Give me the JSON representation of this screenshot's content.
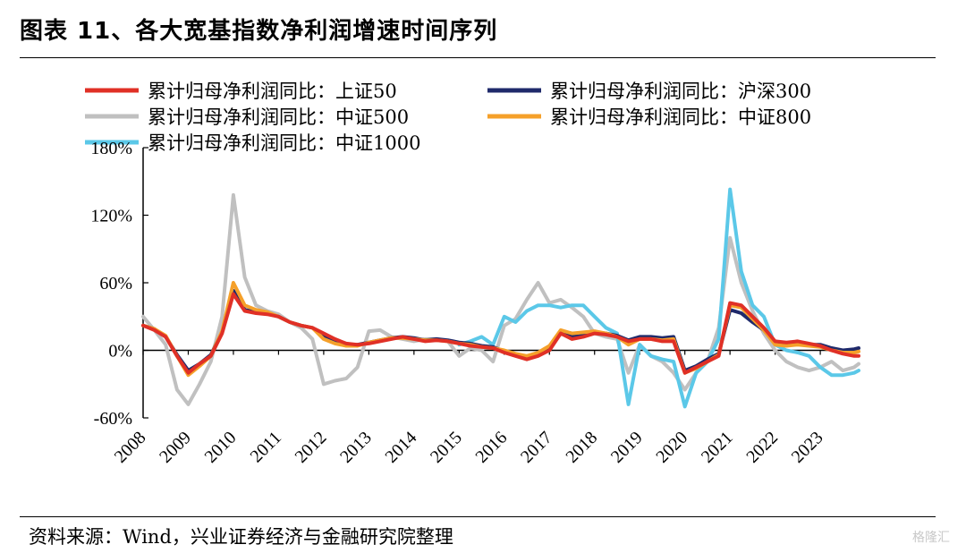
{
  "title": "图表 11、各大宽基指数净利润增速时间序列",
  "source": "资料来源：Wind，兴业证券经济与金融研究院整理",
  "watermark": "格隆汇",
  "chart_data": {
    "type": "line",
    "y_tick_labels": [
      "180%",
      "120%",
      "60%",
      "0%",
      "-60%"
    ],
    "y_ticks": [
      180,
      120,
      60,
      0,
      -60
    ],
    "ylim": [
      -60,
      180
    ],
    "x_tick_labels": [
      "2008",
      "2009",
      "2010",
      "2011",
      "2012",
      "2013",
      "2014",
      "2015",
      "2016",
      "2017",
      "2018",
      "2019",
      "2020",
      "2021",
      "2022",
      "2023"
    ],
    "xlim": [
      2008.0,
      2023.85
    ],
    "legend": "top",
    "grid": false,
    "series": [
      {
        "name": "累计归母净利润同比：上证50",
        "color": "#e03026",
        "points": [
          [
            2008.0,
            22
          ],
          [
            2008.25,
            18
          ],
          [
            2008.5,
            12
          ],
          [
            2008.75,
            -5
          ],
          [
            2009.0,
            -20
          ],
          [
            2009.25,
            -12
          ],
          [
            2009.5,
            -5
          ],
          [
            2009.75,
            15
          ],
          [
            2010.0,
            50
          ],
          [
            2010.25,
            35
          ],
          [
            2010.5,
            33
          ],
          [
            2010.75,
            32
          ],
          [
            2011.0,
            30
          ],
          [
            2011.25,
            25
          ],
          [
            2011.5,
            22
          ],
          [
            2011.75,
            20
          ],
          [
            2012.0,
            15
          ],
          [
            2012.25,
            10
          ],
          [
            2012.5,
            6
          ],
          [
            2012.75,
            5
          ],
          [
            2013.0,
            6
          ],
          [
            2013.25,
            8
          ],
          [
            2013.5,
            10
          ],
          [
            2013.75,
            12
          ],
          [
            2014.0,
            10
          ],
          [
            2014.25,
            8
          ],
          [
            2014.5,
            9
          ],
          [
            2014.75,
            8
          ],
          [
            2015.0,
            6
          ],
          [
            2015.25,
            4
          ],
          [
            2015.5,
            3
          ],
          [
            2015.75,
            2
          ],
          [
            2016.0,
            -2
          ],
          [
            2016.25,
            -5
          ],
          [
            2016.5,
            -8
          ],
          [
            2016.75,
            -5
          ],
          [
            2017.0,
            0
          ],
          [
            2017.25,
            15
          ],
          [
            2017.5,
            10
          ],
          [
            2017.75,
            12
          ],
          [
            2018.0,
            15
          ],
          [
            2018.25,
            14
          ],
          [
            2018.5,
            12
          ],
          [
            2018.75,
            8
          ],
          [
            2019.0,
            10
          ],
          [
            2019.25,
            10
          ],
          [
            2019.5,
            8
          ],
          [
            2019.75,
            8
          ],
          [
            2020.0,
            -20
          ],
          [
            2020.25,
            -15
          ],
          [
            2020.5,
            -10
          ],
          [
            2020.75,
            -5
          ],
          [
            2021.0,
            42
          ],
          [
            2021.25,
            40
          ],
          [
            2021.5,
            30
          ],
          [
            2021.75,
            20
          ],
          [
            2022.0,
            8
          ],
          [
            2022.25,
            7
          ],
          [
            2022.5,
            8
          ],
          [
            2022.75,
            6
          ],
          [
            2023.0,
            4
          ],
          [
            2023.25,
            0
          ],
          [
            2023.5,
            -3
          ],
          [
            2023.75,
            -5
          ],
          [
            2023.85,
            -5
          ]
        ]
      },
      {
        "name": "累计归母净利润同比：沪深300",
        "color": "#1f2a6b",
        "points": [
          [
            2008.0,
            22
          ],
          [
            2008.25,
            19
          ],
          [
            2008.5,
            12
          ],
          [
            2008.75,
            -4
          ],
          [
            2009.0,
            -18
          ],
          [
            2009.25,
            -12
          ],
          [
            2009.5,
            -4
          ],
          [
            2009.75,
            16
          ],
          [
            2010.0,
            53
          ],
          [
            2010.25,
            36
          ],
          [
            2010.5,
            34
          ],
          [
            2010.75,
            33
          ],
          [
            2011.0,
            30
          ],
          [
            2011.25,
            25
          ],
          [
            2011.5,
            22
          ],
          [
            2011.75,
            20
          ],
          [
            2012.0,
            12
          ],
          [
            2012.25,
            8
          ],
          [
            2012.5,
            5
          ],
          [
            2012.75,
            5
          ],
          [
            2013.0,
            7
          ],
          [
            2013.25,
            9
          ],
          [
            2013.5,
            11
          ],
          [
            2013.75,
            12
          ],
          [
            2014.0,
            11
          ],
          [
            2014.25,
            9
          ],
          [
            2014.5,
            10
          ],
          [
            2014.75,
            9
          ],
          [
            2015.0,
            7
          ],
          [
            2015.25,
            6
          ],
          [
            2015.5,
            4
          ],
          [
            2015.75,
            3
          ],
          [
            2016.0,
            -1
          ],
          [
            2016.25,
            -4
          ],
          [
            2016.5,
            -6
          ],
          [
            2016.75,
            -4
          ],
          [
            2017.0,
            2
          ],
          [
            2017.25,
            16
          ],
          [
            2017.5,
            12
          ],
          [
            2017.75,
            13
          ],
          [
            2018.0,
            16
          ],
          [
            2018.25,
            15
          ],
          [
            2018.5,
            13
          ],
          [
            2018.75,
            9
          ],
          [
            2019.0,
            12
          ],
          [
            2019.25,
            12
          ],
          [
            2019.5,
            11
          ],
          [
            2019.75,
            12
          ],
          [
            2020.0,
            -18
          ],
          [
            2020.25,
            -14
          ],
          [
            2020.5,
            -8
          ],
          [
            2020.75,
            -3
          ],
          [
            2021.0,
            36
          ],
          [
            2021.25,
            33
          ],
          [
            2021.5,
            25
          ],
          [
            2021.75,
            18
          ],
          [
            2022.0,
            6
          ],
          [
            2022.25,
            5
          ],
          [
            2022.5,
            6
          ],
          [
            2022.75,
            5
          ],
          [
            2023.0,
            5
          ],
          [
            2023.25,
            2
          ],
          [
            2023.5,
            0
          ],
          [
            2023.75,
            1
          ],
          [
            2023.85,
            2
          ]
        ]
      },
      {
        "name": "累计归母净利润同比：中证500",
        "color": "#c0c0c0",
        "points": [
          [
            2008.0,
            30
          ],
          [
            2008.25,
            18
          ],
          [
            2008.5,
            5
          ],
          [
            2008.75,
            -35
          ],
          [
            2009.0,
            -48
          ],
          [
            2009.25,
            -30
          ],
          [
            2009.5,
            -10
          ],
          [
            2009.75,
            30
          ],
          [
            2010.0,
            138
          ],
          [
            2010.25,
            65
          ],
          [
            2010.5,
            40
          ],
          [
            2010.75,
            35
          ],
          [
            2011.0,
            32
          ],
          [
            2011.25,
            25
          ],
          [
            2011.5,
            20
          ],
          [
            2011.75,
            10
          ],
          [
            2012.0,
            -30
          ],
          [
            2012.25,
            -27
          ],
          [
            2012.5,
            -25
          ],
          [
            2012.75,
            -15
          ],
          [
            2013.0,
            17
          ],
          [
            2013.25,
            18
          ],
          [
            2013.5,
            12
          ],
          [
            2013.75,
            10
          ],
          [
            2014.0,
            8
          ],
          [
            2014.25,
            10
          ],
          [
            2014.5,
            10
          ],
          [
            2014.75,
            8
          ],
          [
            2015.0,
            -5
          ],
          [
            2015.25,
            2
          ],
          [
            2015.5,
            0
          ],
          [
            2015.75,
            -10
          ],
          [
            2016.0,
            22
          ],
          [
            2016.25,
            28
          ],
          [
            2016.5,
            45
          ],
          [
            2016.75,
            60
          ],
          [
            2017.0,
            42
          ],
          [
            2017.25,
            45
          ],
          [
            2017.5,
            38
          ],
          [
            2017.75,
            30
          ],
          [
            2018.0,
            15
          ],
          [
            2018.25,
            12
          ],
          [
            2018.5,
            10
          ],
          [
            2018.75,
            -20
          ],
          [
            2019.0,
            5
          ],
          [
            2019.25,
            -5
          ],
          [
            2019.5,
            -10
          ],
          [
            2019.75,
            -20
          ],
          [
            2020.0,
            -35
          ],
          [
            2020.25,
            -20
          ],
          [
            2020.5,
            -10
          ],
          [
            2020.75,
            20
          ],
          [
            2021.0,
            100
          ],
          [
            2021.25,
            60
          ],
          [
            2021.5,
            35
          ],
          [
            2021.75,
            15
          ],
          [
            2022.0,
            0
          ],
          [
            2022.25,
            -10
          ],
          [
            2022.5,
            -15
          ],
          [
            2022.75,
            -18
          ],
          [
            2023.0,
            -15
          ],
          [
            2023.25,
            -10
          ],
          [
            2023.5,
            -18
          ],
          [
            2023.75,
            -15
          ],
          [
            2023.85,
            -12
          ]
        ]
      },
      {
        "name": "累计归母净利润同比：中证800",
        "color": "#f5a02a",
        "points": [
          [
            2008.0,
            22
          ],
          [
            2008.25,
            19
          ],
          [
            2008.5,
            13
          ],
          [
            2008.75,
            -5
          ],
          [
            2009.0,
            -22
          ],
          [
            2009.25,
            -14
          ],
          [
            2009.5,
            -5
          ],
          [
            2009.75,
            17
          ],
          [
            2010.0,
            60
          ],
          [
            2010.25,
            40
          ],
          [
            2010.5,
            36
          ],
          [
            2010.75,
            34
          ],
          [
            2011.0,
            30
          ],
          [
            2011.25,
            25
          ],
          [
            2011.5,
            22
          ],
          [
            2011.75,
            20
          ],
          [
            2012.0,
            10
          ],
          [
            2012.25,
            6
          ],
          [
            2012.5,
            4
          ],
          [
            2012.75,
            4
          ],
          [
            2013.0,
            7
          ],
          [
            2013.25,
            9
          ],
          [
            2013.5,
            11
          ],
          [
            2013.75,
            11
          ],
          [
            2014.0,
            10
          ],
          [
            2014.25,
            9
          ],
          [
            2014.5,
            9
          ],
          [
            2014.75,
            8
          ],
          [
            2015.0,
            6
          ],
          [
            2015.25,
            5
          ],
          [
            2015.5,
            3
          ],
          [
            2015.75,
            2
          ],
          [
            2016.0,
            0
          ],
          [
            2016.25,
            -3
          ],
          [
            2016.5,
            -5
          ],
          [
            2016.75,
            -2
          ],
          [
            2017.0,
            4
          ],
          [
            2017.25,
            18
          ],
          [
            2017.5,
            15
          ],
          [
            2017.75,
            16
          ],
          [
            2018.0,
            17
          ],
          [
            2018.25,
            15
          ],
          [
            2018.5,
            12
          ],
          [
            2018.75,
            5
          ],
          [
            2019.0,
            10
          ],
          [
            2019.25,
            10
          ],
          [
            2019.5,
            9
          ],
          [
            2019.75,
            10
          ],
          [
            2020.0,
            -20
          ],
          [
            2020.25,
            -16
          ],
          [
            2020.5,
            -10
          ],
          [
            2020.75,
            -4
          ],
          [
            2021.0,
            40
          ],
          [
            2021.25,
            38
          ],
          [
            2021.5,
            28
          ],
          [
            2021.75,
            18
          ],
          [
            2022.0,
            5
          ],
          [
            2022.25,
            4
          ],
          [
            2022.5,
            5
          ],
          [
            2022.75,
            4
          ],
          [
            2023.0,
            3
          ],
          [
            2023.25,
            0
          ],
          [
            2023.5,
            -2
          ],
          [
            2023.75,
            -2
          ],
          [
            2023.85,
            -1
          ]
        ]
      },
      {
        "name": "累计归母净利润同比：中证1000",
        "color": "#5bc8e8",
        "points": [
          [
            2015.0,
            5
          ],
          [
            2015.25,
            8
          ],
          [
            2015.5,
            12
          ],
          [
            2015.75,
            5
          ],
          [
            2016.0,
            30
          ],
          [
            2016.25,
            25
          ],
          [
            2016.5,
            35
          ],
          [
            2016.75,
            40
          ],
          [
            2017.0,
            40
          ],
          [
            2017.25,
            38
          ],
          [
            2017.5,
            40
          ],
          [
            2017.75,
            40
          ],
          [
            2018.0,
            30
          ],
          [
            2018.25,
            20
          ],
          [
            2018.5,
            15
          ],
          [
            2018.75,
            -48
          ],
          [
            2019.0,
            5
          ],
          [
            2019.25,
            -5
          ],
          [
            2019.5,
            -8
          ],
          [
            2019.75,
            -10
          ],
          [
            2020.0,
            -50
          ],
          [
            2020.25,
            -20
          ],
          [
            2020.5,
            -10
          ],
          [
            2020.75,
            10
          ],
          [
            2021.0,
            143
          ],
          [
            2021.25,
            70
          ],
          [
            2021.5,
            40
          ],
          [
            2021.75,
            30
          ],
          [
            2022.0,
            5
          ],
          [
            2022.25,
            0
          ],
          [
            2022.5,
            -2
          ],
          [
            2022.75,
            -5
          ],
          [
            2023.0,
            -15
          ],
          [
            2023.25,
            -22
          ],
          [
            2023.5,
            -22
          ],
          [
            2023.75,
            -20
          ],
          [
            2023.85,
            -18
          ]
        ]
      }
    ]
  }
}
